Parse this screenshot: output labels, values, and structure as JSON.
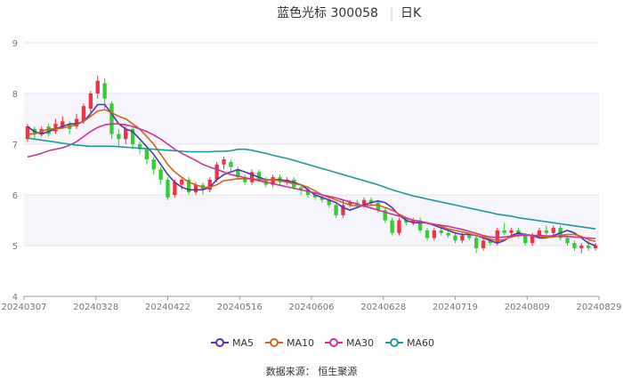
{
  "chart_data": {
    "type": "candlestick",
    "title": "蓝色光标 300058",
    "period": "日K",
    "source": "数据来源： 恒生聚源",
    "ylim": [
      4,
      9
    ],
    "yticks": [
      "4",
      "5",
      "6",
      "7",
      "8",
      "9"
    ],
    "xticks": [
      "20240307",
      "20240328",
      "20240422",
      "20240516",
      "20240606",
      "20240628",
      "20240719",
      "20240809",
      "20240829"
    ],
    "grid": true,
    "legend_position": "bottom",
    "up_color": "#ee3344",
    "down_color": "#33cc33",
    "series": [
      {
        "name": "MA5",
        "color": "#5533aa",
        "values": [
          7.35,
          7.25,
          7.2,
          7.25,
          7.3,
          7.35,
          7.4,
          7.4,
          7.45,
          7.6,
          7.78,
          7.78,
          7.6,
          7.4,
          7.3,
          7.25,
          7.1,
          6.95,
          6.8,
          6.6,
          6.4,
          6.25,
          6.15,
          6.1,
          6.1,
          6.1,
          6.15,
          6.3,
          6.4,
          6.45,
          6.5,
          6.45,
          6.4,
          6.35,
          6.3,
          6.3,
          6.3,
          6.28,
          6.25,
          6.2,
          6.1,
          6.0,
          5.95,
          5.9,
          5.85,
          5.75,
          5.7,
          5.75,
          5.8,
          5.85,
          5.88,
          5.85,
          5.75,
          5.6,
          5.5,
          5.45,
          5.45,
          5.45,
          5.4,
          5.35,
          5.3,
          5.25,
          5.22,
          5.22,
          5.2,
          5.15,
          5.1,
          5.05,
          5.1,
          5.2,
          5.25,
          5.22,
          5.2,
          5.15,
          5.15,
          5.2,
          5.25,
          5.3,
          5.25,
          5.15,
          5.05,
          5.0
        ]
      },
      {
        "name": "MA10",
        "color": "#cc6622",
        "values": [
          7.2,
          7.2,
          7.25,
          7.3,
          7.3,
          7.32,
          7.35,
          7.38,
          7.45,
          7.55,
          7.65,
          7.68,
          7.62,
          7.55,
          7.5,
          7.4,
          7.3,
          7.15,
          7.0,
          6.8,
          6.6,
          6.45,
          6.35,
          6.25,
          6.2,
          6.15,
          6.15,
          6.2,
          6.28,
          6.3,
          6.32,
          6.32,
          6.32,
          6.3,
          6.3,
          6.3,
          6.28,
          6.25,
          6.22,
          6.2,
          6.15,
          6.08,
          6.0,
          5.95,
          5.9,
          5.85,
          5.8,
          5.78,
          5.78,
          5.8,
          5.8,
          5.75,
          5.7,
          5.62,
          5.55,
          5.5,
          5.48,
          5.45,
          5.42,
          5.38,
          5.33,
          5.3,
          5.27,
          5.24,
          5.2,
          5.17,
          5.13,
          5.1,
          5.12,
          5.17,
          5.2,
          5.22,
          5.2,
          5.18,
          5.16,
          5.17,
          5.2,
          5.22,
          5.22,
          5.18,
          5.12,
          5.08
        ]
      },
      {
        "name": "MA30",
        "color": "#cc3399",
        "values": [
          6.75,
          6.78,
          6.82,
          6.87,
          6.9,
          6.93,
          6.98,
          7.05,
          7.15,
          7.25,
          7.33,
          7.38,
          7.4,
          7.4,
          7.38,
          7.35,
          7.3,
          7.25,
          7.18,
          7.1,
          7.0,
          6.9,
          6.82,
          6.75,
          6.68,
          6.6,
          6.55,
          6.5,
          6.45,
          6.4,
          6.37,
          6.34,
          6.31,
          6.28,
          6.25,
          6.22,
          6.19,
          6.16,
          6.13,
          6.1,
          6.07,
          6.04,
          6.0,
          5.97,
          5.94,
          5.9,
          5.86,
          5.82,
          5.78,
          5.74,
          5.7,
          5.66,
          5.62,
          5.58,
          5.54,
          5.5,
          5.47,
          5.44,
          5.42,
          5.4,
          5.38,
          5.35,
          5.32,
          5.28,
          5.24,
          5.2,
          5.17,
          5.16,
          5.17,
          5.19,
          5.2,
          5.2,
          5.2,
          5.2,
          5.19,
          5.19,
          5.18,
          5.18,
          5.17,
          5.16,
          5.15,
          5.14
        ]
      },
      {
        "name": "MA60",
        "color": "#229999",
        "values": [
          7.12,
          7.1,
          7.08,
          7.06,
          7.04,
          7.02,
          7.0,
          6.98,
          6.97,
          6.96,
          6.96,
          6.96,
          6.96,
          6.95,
          6.94,
          6.93,
          6.92,
          6.91,
          6.9,
          6.89,
          6.88,
          6.87,
          6.86,
          6.85,
          6.85,
          6.85,
          6.85,
          6.86,
          6.86,
          6.87,
          6.9,
          6.9,
          6.88,
          6.85,
          6.82,
          6.78,
          6.75,
          6.72,
          6.68,
          6.64,
          6.6,
          6.56,
          6.52,
          6.48,
          6.44,
          6.4,
          6.36,
          6.32,
          6.28,
          6.24,
          6.2,
          6.15,
          6.1,
          6.06,
          6.02,
          5.98,
          5.95,
          5.92,
          5.89,
          5.86,
          5.83,
          5.8,
          5.77,
          5.74,
          5.71,
          5.68,
          5.65,
          5.62,
          5.6,
          5.58,
          5.55,
          5.53,
          5.51,
          5.49,
          5.47,
          5.45,
          5.43,
          5.41,
          5.39,
          5.37,
          5.35,
          5.33
        ]
      }
    ],
    "candles": [
      [
        7.1,
        7.35,
        7.4,
        7.05
      ],
      [
        7.3,
        7.2,
        7.35,
        7.1
      ],
      [
        7.2,
        7.3,
        7.35,
        7.15
      ],
      [
        7.35,
        7.2,
        7.4,
        7.15
      ],
      [
        7.25,
        7.4,
        7.5,
        7.2
      ],
      [
        7.35,
        7.45,
        7.55,
        7.3
      ],
      [
        7.4,
        7.3,
        7.45,
        7.2
      ],
      [
        7.35,
        7.5,
        7.6,
        7.3
      ],
      [
        7.45,
        7.75,
        7.8,
        7.4
      ],
      [
        7.7,
        8.0,
        8.05,
        7.6
      ],
      [
        8.0,
        8.25,
        8.35,
        7.9
      ],
      [
        8.2,
        7.9,
        8.3,
        7.7
      ],
      [
        7.8,
        7.2,
        7.85,
        7.1
      ],
      [
        7.2,
        7.1,
        7.3,
        6.95
      ],
      [
        7.1,
        7.3,
        7.35,
        7.0
      ],
      [
        7.3,
        7.0,
        7.35,
        6.9
      ],
      [
        7.0,
        6.9,
        7.05,
        6.8
      ],
      [
        6.9,
        6.7,
        6.95,
        6.6
      ],
      [
        6.7,
        6.5,
        6.75,
        6.4
      ],
      [
        6.5,
        6.3,
        6.55,
        6.2
      ],
      [
        6.3,
        5.95,
        6.35,
        5.9
      ],
      [
        6.0,
        6.25,
        6.3,
        5.95
      ],
      [
        6.2,
        6.3,
        6.35,
        6.1
      ],
      [
        6.3,
        6.05,
        6.35,
        6.0
      ],
      [
        6.05,
        6.2,
        6.25,
        6.0
      ],
      [
        6.2,
        6.1,
        6.25,
        6.0
      ],
      [
        6.1,
        6.3,
        6.35,
        6.05
      ],
      [
        6.3,
        6.6,
        6.65,
        6.25
      ],
      [
        6.6,
        6.7,
        6.75,
        6.5
      ],
      [
        6.65,
        6.55,
        6.7,
        6.45
      ],
      [
        6.5,
        6.35,
        6.55,
        6.3
      ],
      [
        6.35,
        6.25,
        6.4,
        6.2
      ],
      [
        6.25,
        6.45,
        6.5,
        6.2
      ],
      [
        6.45,
        6.3,
        6.5,
        6.25
      ],
      [
        6.3,
        6.2,
        6.35,
        6.15
      ],
      [
        6.2,
        6.35,
        6.4,
        6.15
      ],
      [
        6.35,
        6.25,
        6.4,
        6.2
      ],
      [
        6.25,
        6.3,
        6.35,
        6.2
      ],
      [
        6.3,
        6.15,
        6.35,
        6.1
      ],
      [
        6.15,
        6.1,
        6.2,
        6.0
      ],
      [
        6.1,
        6.0,
        6.15,
        5.95
      ],
      [
        6.0,
        5.95,
        6.05,
        5.9
      ],
      [
        5.95,
        5.9,
        6.0,
        5.85
      ],
      [
        5.9,
        5.8,
        5.95,
        5.75
      ],
      [
        5.8,
        5.6,
        5.85,
        5.55
      ],
      [
        5.6,
        5.8,
        5.9,
        5.55
      ],
      [
        5.8,
        5.85,
        5.9,
        5.75
      ],
      [
        5.85,
        5.8,
        5.9,
        5.75
      ],
      [
        5.8,
        5.9,
        5.95,
        5.75
      ],
      [
        5.9,
        5.85,
        5.95,
        5.8
      ],
      [
        5.85,
        5.7,
        5.9,
        5.65
      ],
      [
        5.7,
        5.5,
        5.75,
        5.45
      ],
      [
        5.5,
        5.25,
        5.55,
        5.2
      ],
      [
        5.25,
        5.5,
        5.55,
        5.2
      ],
      [
        5.5,
        5.45,
        5.55,
        5.4
      ],
      [
        5.45,
        5.5,
        5.55,
        5.4
      ],
      [
        5.5,
        5.3,
        5.55,
        5.25
      ],
      [
        5.3,
        5.15,
        5.35,
        5.1
      ],
      [
        5.15,
        5.3,
        5.35,
        5.1
      ],
      [
        5.3,
        5.25,
        5.35,
        5.2
      ],
      [
        5.25,
        5.2,
        5.3,
        5.15
      ],
      [
        5.2,
        5.1,
        5.25,
        5.05
      ],
      [
        5.1,
        5.2,
        5.25,
        5.05
      ],
      [
        5.2,
        5.15,
        5.25,
        5.1
      ],
      [
        5.15,
        4.95,
        5.2,
        4.85
      ],
      [
        4.95,
        5.1,
        5.15,
        4.9
      ],
      [
        5.1,
        5.05,
        5.15,
        5.0
      ],
      [
        5.05,
        5.3,
        5.35,
        5.0
      ],
      [
        5.3,
        5.25,
        5.45,
        5.2
      ],
      [
        5.25,
        5.3,
        5.35,
        5.2
      ],
      [
        5.3,
        5.2,
        5.35,
        5.15
      ],
      [
        5.2,
        5.05,
        5.25,
        5.0
      ],
      [
        5.05,
        5.2,
        5.25,
        5.0
      ],
      [
        5.2,
        5.3,
        5.35,
        5.15
      ],
      [
        5.3,
        5.25,
        5.4,
        5.2
      ],
      [
        5.25,
        5.35,
        5.4,
        5.2
      ],
      [
        5.35,
        5.15,
        5.4,
        5.1
      ],
      [
        5.15,
        5.05,
        5.2,
        5.0
      ],
      [
        5.05,
        4.95,
        5.1,
        4.9
      ],
      [
        4.95,
        5.0,
        5.05,
        4.85
      ],
      [
        5.0,
        4.95,
        5.1,
        4.9
      ],
      [
        4.95,
        5.0,
        5.05,
        4.9
      ]
    ]
  }
}
